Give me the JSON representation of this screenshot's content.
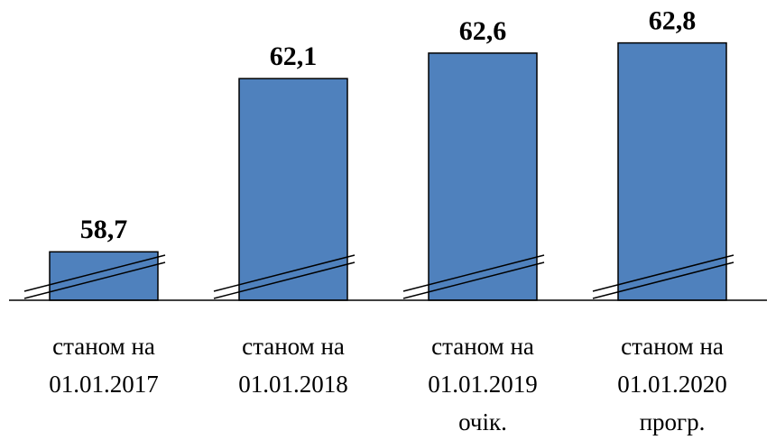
{
  "chart_data": {
    "type": "bar",
    "categories": [
      [
        "станом на",
        "01.01.2017"
      ],
      [
        "станом на",
        "01.01.2018"
      ],
      [
        "станом на",
        "01.01.2019",
        "очік."
      ],
      [
        "станом на",
        "01.01.2020",
        "прогр."
      ]
    ],
    "values": [
      58.7,
      62.1,
      62.6,
      62.8
    ],
    "value_labels": [
      "58,7",
      "62,1",
      "62,6",
      "62,8"
    ],
    "color": "#4f81bd",
    "ylim": [
      57.75,
      63.2
    ]
  }
}
